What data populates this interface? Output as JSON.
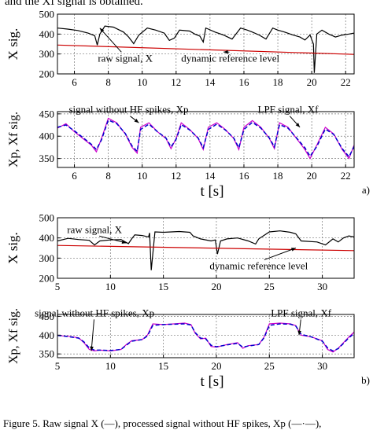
{
  "header_text": "and the Xf signal is obtained.",
  "caption": "Figure 5.    Raw signal X (—), processed signal without HF spikes, Xp (—·—),",
  "chart_data": [
    {
      "type": "line",
      "panel_id": "a-top",
      "ylabel": "X sig.",
      "xlim": [
        5,
        22.5
      ],
      "ylim": [
        200,
        500
      ],
      "xticks": [
        6,
        8,
        10,
        12,
        14,
        16,
        18,
        20,
        22
      ],
      "yticks": [
        200,
        300,
        400,
        500
      ],
      "grid": true,
      "annotations": [
        {
          "text": "raw signal, X",
          "x": 9.0,
          "y": 262
        },
        {
          "text": "dynamic reference level",
          "x": 15.2,
          "y": 262
        }
      ],
      "series": [
        {
          "color": "#000000",
          "style": "solid",
          "x": [
            5.0,
            5.6,
            6.2,
            6.8,
            7.2,
            7.35,
            7.5,
            7.8,
            8.3,
            8.9,
            9.2,
            9.5,
            9.8,
            10.3,
            10.8,
            11.3,
            11.6,
            11.9,
            12.2,
            12.8,
            13.1,
            13.4,
            13.6,
            13.75,
            13.9,
            14.3,
            14.8,
            15.3,
            15.8,
            16.2,
            16.5,
            16.9,
            17.3,
            17.7,
            18.0,
            18.4,
            18.9,
            19.3,
            19.6,
            19.9,
            20.1,
            20.15,
            20.3,
            20.6,
            21.0,
            21.4,
            21.8,
            22.2,
            22.5
          ],
          "y": [
            430,
            425,
            418,
            405,
            392,
            345,
            400,
            440,
            435,
            410,
            385,
            352,
            395,
            430,
            420,
            405,
            368,
            380,
            420,
            415,
            400,
            390,
            360,
            430,
            425,
            410,
            395,
            375,
            430,
            420,
            410,
            395,
            375,
            430,
            420,
            410,
            395,
            385,
            370,
            395,
            350,
            205,
            400,
            420,
            400,
            385,
            395,
            400,
            405
          ]
        },
        {
          "color": "#cc0000",
          "style": "solid",
          "x": [
            5.0,
            22.5
          ],
          "y": [
            345,
            298
          ]
        }
      ]
    },
    {
      "type": "line",
      "panel_id": "a-bottom",
      "xlabel": "t [s]",
      "ylabel": "Xp, Xf sig.",
      "xlim": [
        5,
        22.5
      ],
      "ylim": [
        330,
        455
      ],
      "xticks": [
        6,
        8,
        10,
        12,
        14,
        16,
        18,
        20,
        22
      ],
      "yticks": [
        350,
        400,
        450
      ],
      "grid": true,
      "panel_label": "a)",
      "annotations": [
        {
          "text": "signal without HF spikes, Xp",
          "x": 9.2,
          "y": 452
        },
        {
          "text": "LPF signal, Xf",
          "x": 18.6,
          "y": 452
        }
      ],
      "series": [
        {
          "color": "#cc00cc",
          "style": "solid",
          "x": [
            5.0,
            5.5,
            6.0,
            6.5,
            7.0,
            7.3,
            7.6,
            8.0,
            8.5,
            9.0,
            9.4,
            9.7,
            9.9,
            10.4,
            10.9,
            11.4,
            11.7,
            12.0,
            12.3,
            12.8,
            13.3,
            13.6,
            13.9,
            14.4,
            14.9,
            15.4,
            15.7,
            16.0,
            16.5,
            17.0,
            17.5,
            17.8,
            18.1,
            18.6,
            19.1,
            19.6,
            19.9,
            20.3,
            20.8,
            21.3,
            21.8,
            22.2,
            22.5
          ],
          "y": [
            418,
            428,
            410,
            395,
            380,
            365,
            395,
            440,
            430,
            405,
            375,
            362,
            420,
            430,
            410,
            395,
            372,
            395,
            430,
            415,
            395,
            370,
            420,
            430,
            415,
            395,
            370,
            420,
            435,
            420,
            395,
            372,
            430,
            420,
            395,
            370,
            350,
            380,
            420,
            405,
            370,
            350,
            380
          ]
        },
        {
          "color": "#0000cc",
          "style": "dashed",
          "x": [
            5.0,
            5.5,
            6.0,
            6.5,
            7.0,
            7.3,
            7.6,
            8.0,
            8.5,
            9.0,
            9.4,
            9.7,
            9.9,
            10.4,
            10.9,
            11.4,
            11.7,
            12.0,
            12.3,
            12.8,
            13.3,
            13.6,
            13.9,
            14.4,
            14.9,
            15.4,
            15.7,
            16.0,
            16.5,
            17.0,
            17.5,
            17.8,
            18.1,
            18.6,
            19.1,
            19.6,
            19.9,
            20.3,
            20.8,
            21.3,
            21.8,
            22.2,
            22.5
          ],
          "y": [
            420,
            425,
            412,
            397,
            382,
            370,
            392,
            436,
            428,
            406,
            378,
            366,
            415,
            427,
            410,
            396,
            376,
            393,
            426,
            414,
            396,
            374,
            415,
            427,
            414,
            396,
            374,
            415,
            431,
            418,
            396,
            376,
            426,
            418,
            396,
            374,
            355,
            377,
            416,
            404,
            372,
            354,
            377
          ]
        }
      ]
    },
    {
      "type": "line",
      "panel_id": "b-top",
      "ylabel": "X sig.",
      "xlim": [
        5,
        33
      ],
      "ylim": [
        200,
        500
      ],
      "xticks": [
        5,
        10,
        15,
        20,
        25,
        30
      ],
      "yticks": [
        200,
        300,
        400,
        500
      ],
      "grid": true,
      "annotations": [
        {
          "text": "raw signal, X",
          "x": 8.5,
          "y": 425
        },
        {
          "text": "dynamic reference level",
          "x": 24.0,
          "y": 245
        }
      ],
      "series": [
        {
          "color": "#000000",
          "style": "solid",
          "x": [
            5.0,
            6.0,
            7.0,
            8.0,
            8.5,
            9.0,
            10.0,
            11.0,
            11.7,
            12.0,
            12.3,
            13.0,
            13.6,
            13.7,
            13.85,
            14.2,
            15.0,
            16.5,
            17.5,
            17.8,
            18.5,
            19.5,
            19.9,
            20.1,
            20.4,
            21.0,
            22.0,
            23.0,
            23.7,
            24.0,
            25.0,
            26.0,
            27.0,
            27.5,
            28.0,
            29.5,
            30.3,
            31.0,
            31.5,
            32.0,
            32.5,
            33.0
          ],
          "y": [
            385,
            398,
            392,
            388,
            365,
            385,
            390,
            392,
            372,
            395,
            415,
            412,
            405,
            425,
            240,
            430,
            428,
            432,
            428,
            410,
            395,
            385,
            390,
            320,
            385,
            395,
            400,
            385,
            370,
            395,
            430,
            435,
            428,
            420,
            385,
            380,
            365,
            395,
            380,
            400,
            410,
            405
          ]
        },
        {
          "color": "#cc0000",
          "style": "solid",
          "x": [
            5.0,
            33.0
          ],
          "y": [
            363,
            337
          ]
        }
      ]
    },
    {
      "type": "line",
      "panel_id": "b-bottom",
      "xlabel": "t [s]",
      "ylabel": "Xp, Xf sig.",
      "xlim": [
        5,
        33
      ],
      "ylim": [
        340,
        455
      ],
      "xticks": [
        5,
        10,
        15,
        20,
        25,
        30
      ],
      "yticks": [
        350,
        400,
        450
      ],
      "grid": true,
      "panel_label": "b)",
      "annotations": [
        {
          "text": "signal without HF spikes, Xp",
          "x": 8.5,
          "y": 450
        },
        {
          "text": "LPF signal, Xf",
          "x": 28.0,
          "y": 450
        }
      ],
      "series": [
        {
          "color": "#cc00cc",
          "style": "solid",
          "x": [
            5.0,
            5.5,
            6.0,
            7.0,
            7.5,
            8.0,
            8.5,
            9.0,
            10.0,
            11.0,
            11.5,
            12.0,
            13.0,
            13.5,
            14.0,
            15.0,
            16.0,
            17.0,
            17.6,
            18.0,
            18.5,
            19.0,
            19.5,
            20.0,
            21.0,
            22.0,
            22.5,
            23.0,
            24.0,
            24.5,
            25.0,
            26.0,
            27.0,
            27.5,
            28.0,
            29.0,
            30.0,
            30.5,
            31.0,
            31.5,
            32.0,
            32.5,
            33.0
          ],
          "y": [
            400,
            398,
            397,
            393,
            380,
            362,
            358,
            360,
            358,
            362,
            375,
            385,
            388,
            400,
            430,
            428,
            430,
            432,
            428,
            405,
            390,
            392,
            370,
            368,
            375,
            380,
            365,
            372,
            375,
            395,
            430,
            432,
            430,
            425,
            400,
            395,
            385,
            362,
            355,
            365,
            380,
            395,
            408
          ]
        },
        {
          "color": "#0000cc",
          "style": "dashed",
          "x": [
            5.0,
            5.5,
            6.0,
            7.0,
            7.5,
            8.0,
            8.5,
            9.0,
            10.0,
            11.0,
            11.5,
            12.0,
            13.0,
            13.5,
            14.0,
            15.0,
            16.0,
            17.0,
            17.6,
            18.0,
            18.5,
            19.0,
            19.5,
            20.0,
            21.0,
            22.0,
            22.5,
            23.0,
            24.0,
            24.5,
            25.0,
            26.0,
            27.0,
            27.5,
            28.0,
            29.0,
            30.0,
            30.5,
            31.0,
            31.5,
            32.0,
            32.5,
            33.0
          ],
          "y": [
            399,
            398,
            396,
            392,
            382,
            366,
            360,
            360,
            359,
            362,
            373,
            384,
            388,
            398,
            426,
            428,
            429,
            430,
            427,
            407,
            392,
            390,
            373,
            369,
            374,
            378,
            368,
            371,
            375,
            393,
            426,
            430,
            429,
            424,
            402,
            395,
            384,
            366,
            358,
            364,
            378,
            393,
            404
          ]
        }
      ]
    }
  ]
}
